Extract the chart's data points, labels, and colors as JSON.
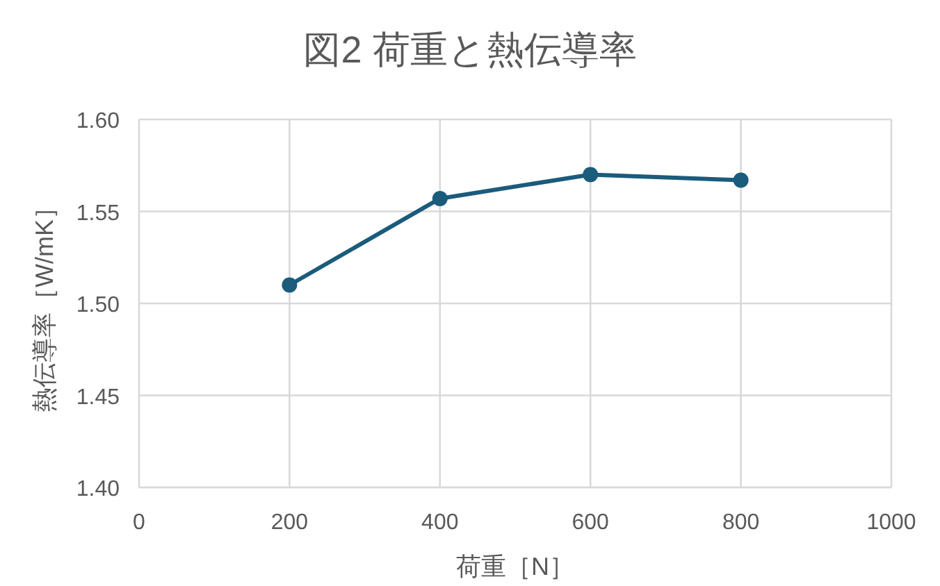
{
  "chart_data": {
    "type": "line",
    "title": "図2 荷重と熱伝導率",
    "xlabel": "荷重［N］",
    "ylabel": "熱伝導率［W/mK］",
    "x": [
      200,
      400,
      600,
      800
    ],
    "series": [
      {
        "color": "#1b5b7c",
        "values": [
          1.51,
          1.557,
          1.57,
          1.567
        ]
      }
    ],
    "xlim": [
      0,
      1000
    ],
    "xticks": [
      0,
      200,
      400,
      600,
      800,
      1000
    ],
    "ylim": [
      1.4,
      1.6
    ],
    "yticks": [
      {
        "value": 1.4,
        "label": "1.40"
      },
      {
        "value": 1.45,
        "label": "1.45"
      },
      {
        "value": 1.5,
        "label": "1.50"
      },
      {
        "value": 1.55,
        "label": "1.55"
      },
      {
        "value": 1.6,
        "label": "1.60"
      }
    ],
    "grid": true,
    "marker": "circle",
    "line_style": "solid"
  }
}
